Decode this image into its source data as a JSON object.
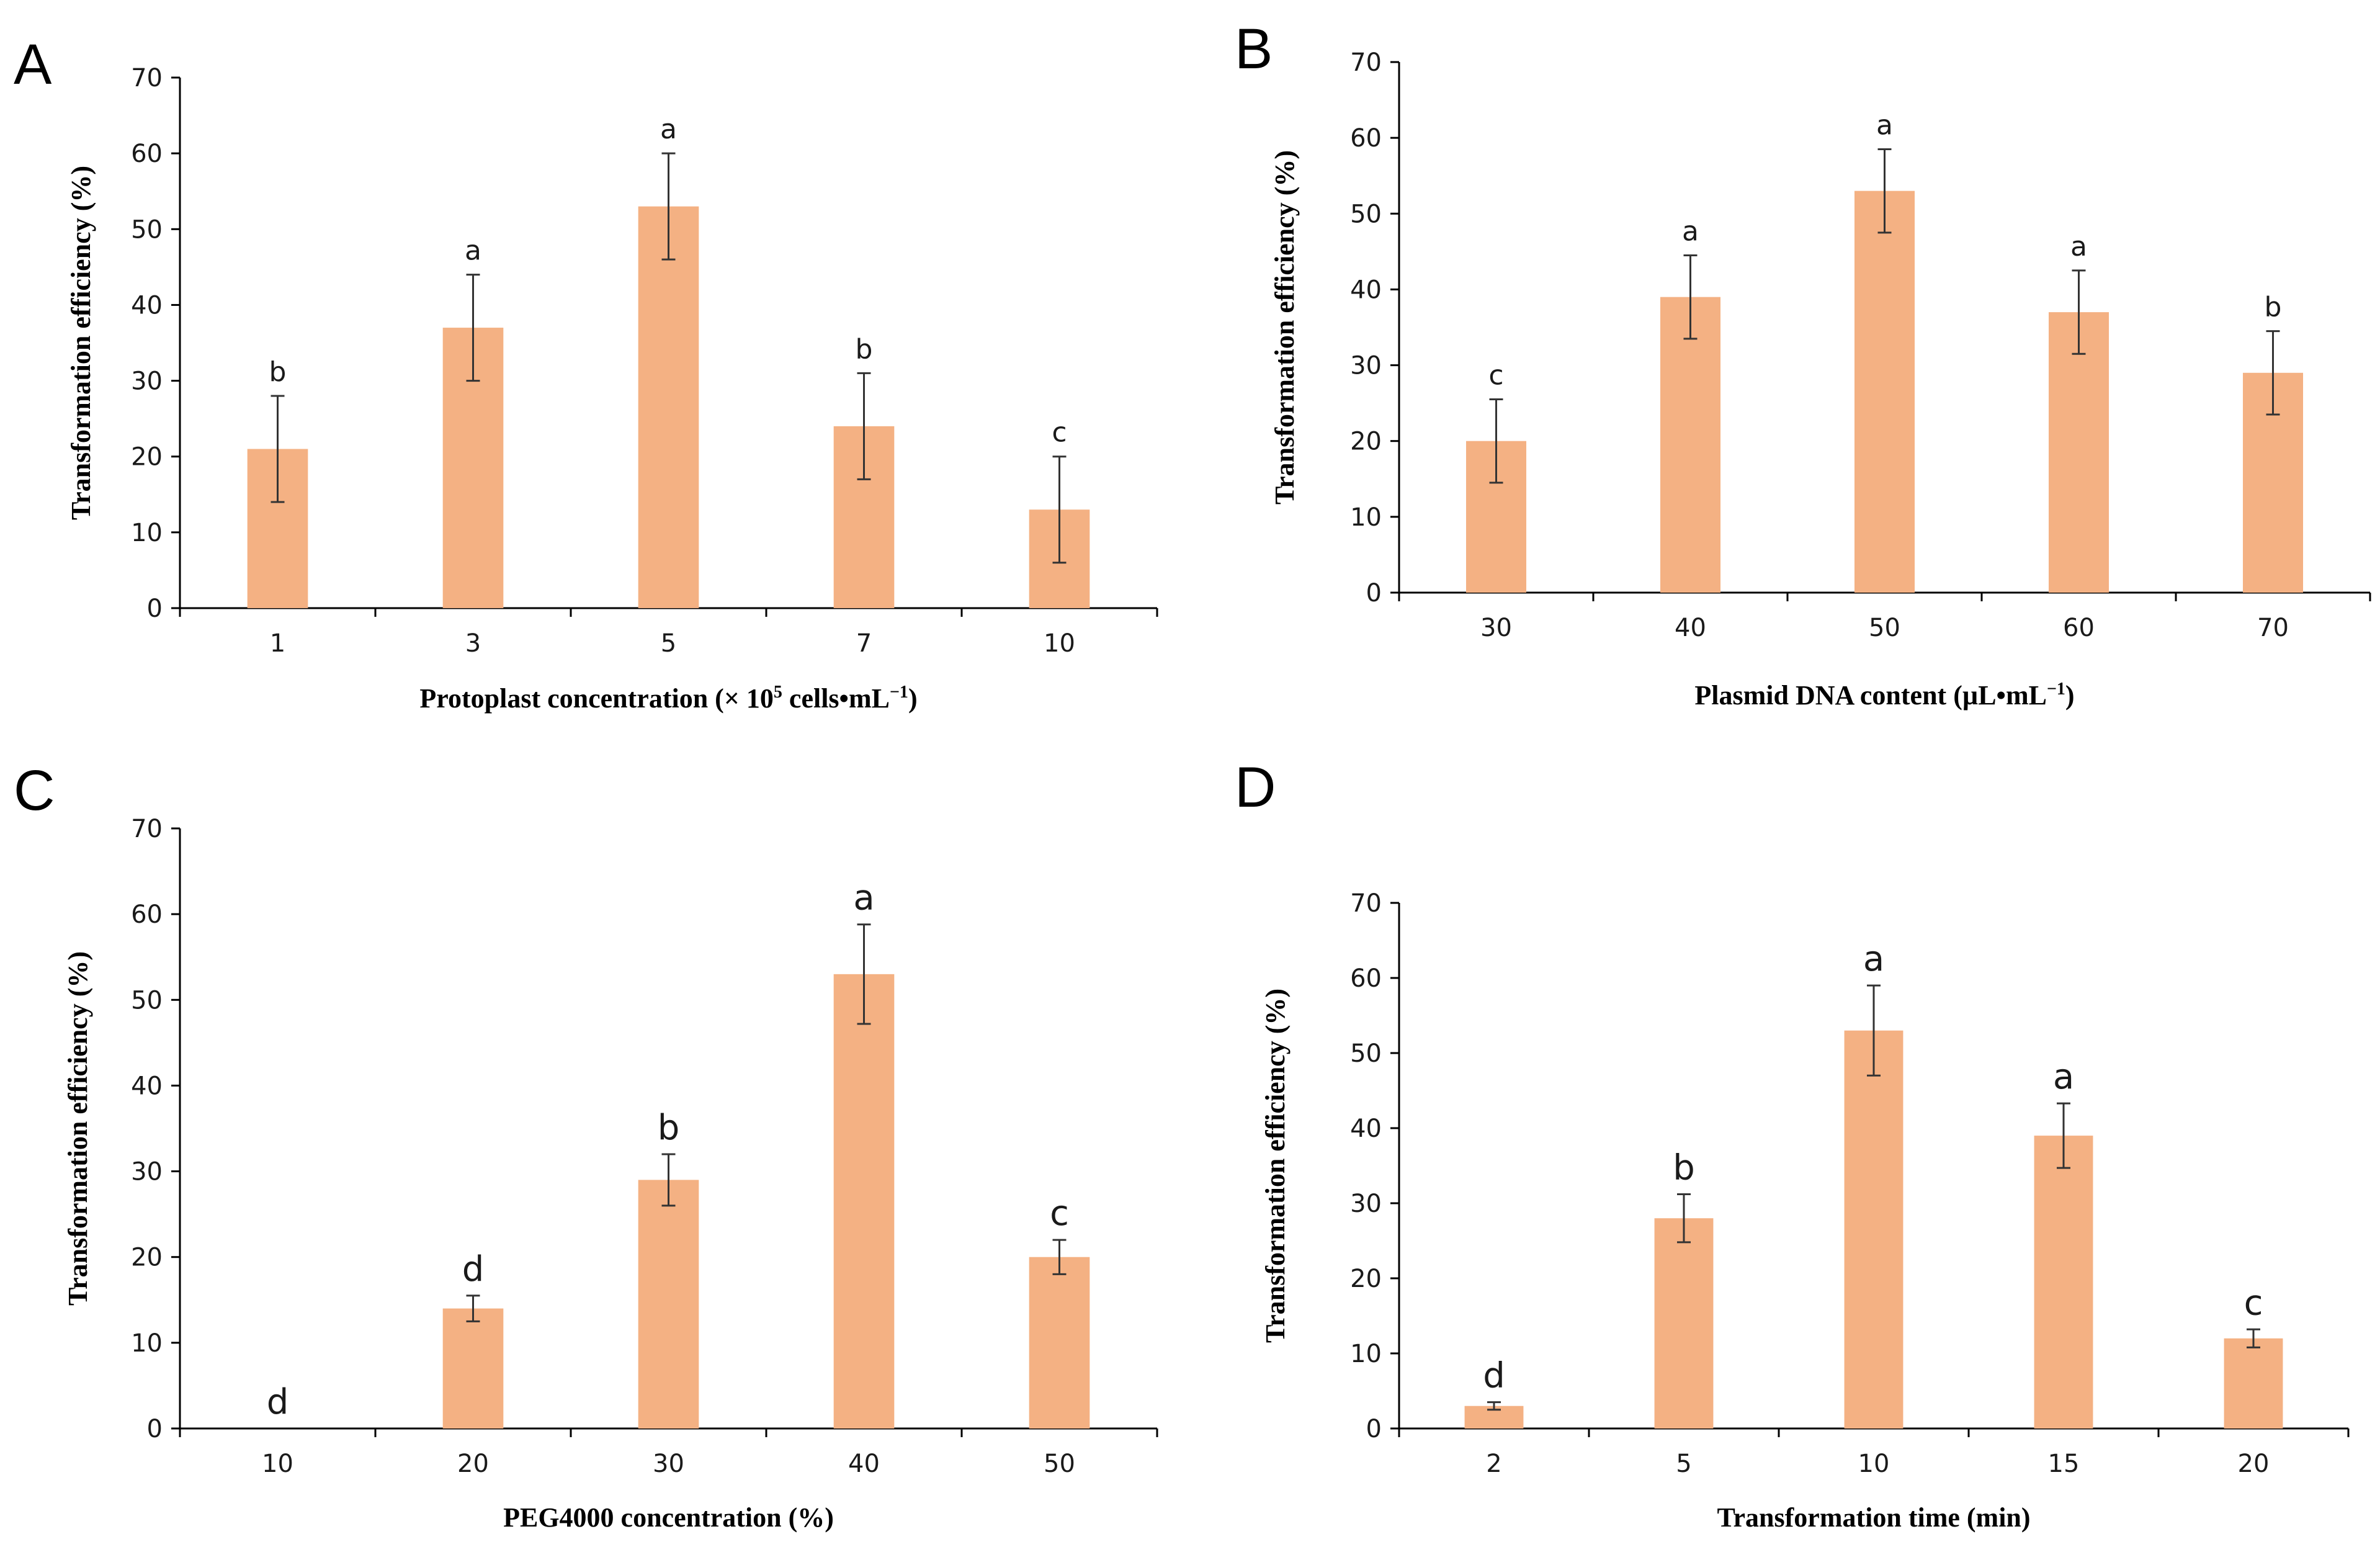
{
  "chart_data": [
    {
      "panel": "A",
      "type": "bar",
      "categories": [
        "1",
        "3",
        "5",
        "7",
        "10"
      ],
      "values": [
        21,
        37,
        53,
        24,
        13
      ],
      "errors": [
        7,
        7,
        7,
        7,
        7
      ],
      "significance": [
        "b",
        "a",
        "a",
        "b",
        "c"
      ],
      "ylabel": "Transformation efficiency (%)",
      "xlabel_parts": [
        "Protoplast concentration (× 10",
        "5",
        " cells•mL",
        "−1",
        ")"
      ],
      "ylim": [
        0,
        70
      ],
      "yticks": [
        0,
        10,
        20,
        30,
        40,
        50,
        60,
        70
      ],
      "color": "#f4b183"
    },
    {
      "panel": "B",
      "type": "bar",
      "categories": [
        "30",
        "40",
        "50",
        "60",
        "70"
      ],
      "values": [
        20,
        39,
        53,
        37,
        29
      ],
      "errors": [
        5.5,
        5.5,
        5.5,
        5.5,
        5.5
      ],
      "significance": [
        "c",
        "a",
        "a",
        "a",
        "b"
      ],
      "ylabel": "Transformation efficiency (%)",
      "xlabel_parts": [
        "Plasmid DNA content (µL•mL",
        "−1",
        ")"
      ],
      "ylim": [
        0,
        70
      ],
      "yticks": [
        0,
        10,
        20,
        30,
        40,
        50,
        60,
        70
      ],
      "color": "#f4b183"
    },
    {
      "panel": "C",
      "type": "bar",
      "categories": [
        "10",
        "20",
        "30",
        "40",
        "50"
      ],
      "values": [
        0,
        14,
        29,
        53,
        20
      ],
      "errors": [
        0,
        1.5,
        3,
        5.8,
        2
      ],
      "significance": [
        "d",
        "d",
        "b",
        "a",
        "c"
      ],
      "ylabel": "Transformation efficiency (%)",
      "xlabel_parts": [
        "PEG4000 concentration (%)"
      ],
      "ylim": [
        0,
        70
      ],
      "yticks": [
        0,
        10,
        20,
        30,
        40,
        50,
        60,
        70
      ],
      "color": "#f4b183"
    },
    {
      "panel": "D",
      "type": "bar",
      "categories": [
        "2",
        "5",
        "10",
        "15",
        "20"
      ],
      "values": [
        3,
        28,
        53,
        39,
        12
      ],
      "errors": [
        0.5,
        3.2,
        6,
        4.3,
        1.2
      ],
      "significance": [
        "d",
        "b",
        "a",
        "a",
        "c"
      ],
      "ylabel": "Transformation efficiency (%)",
      "xlabel_parts": [
        "Transformation time (min)"
      ],
      "ylim": [
        0,
        70
      ],
      "yticks": [
        0,
        10,
        20,
        30,
        40,
        50,
        60,
        70
      ],
      "color": "#f4b183"
    }
  ]
}
